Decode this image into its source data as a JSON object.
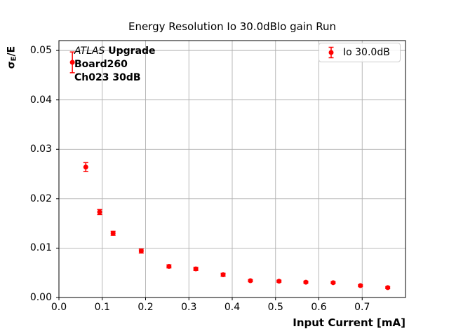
{
  "chart_data": {
    "type": "scatter",
    "title": "Energy Resolution Io 30.0dBlo gain Run",
    "xlabel": "Input Current [mA]",
    "ylabel": "σE/E",
    "ylabel_parts": {
      "sigma": "σ",
      "subscript": "E",
      "rest": "/E"
    },
    "xlim": [
      0,
      0.8
    ],
    "ylim": [
      0,
      0.052
    ],
    "grid": true,
    "grid_color": "#b0b0b0",
    "axis_color": "#000000",
    "xticks": {
      "values": [
        0.0,
        0.1,
        0.2,
        0.3,
        0.4,
        0.5,
        0.6,
        0.7
      ],
      "labels": [
        "0.0",
        "0.1",
        "0.2",
        "0.3",
        "0.4",
        "0.5",
        "0.6",
        "0.7"
      ]
    },
    "yticks": {
      "values": [
        0.0,
        0.01,
        0.02,
        0.03,
        0.04,
        0.05
      ],
      "labels": [
        "0.00",
        "0.01",
        "0.02",
        "0.03",
        "0.04",
        "0.05"
      ]
    },
    "legend": {
      "label": "Io 30.0dB",
      "position": "upper right"
    },
    "series": [
      {
        "name": "Io 30.0dB",
        "color": "#ff0000",
        "marker": "circle-with-errorbar",
        "points": [
          {
            "x": 0.031,
            "y": 0.0476,
            "yerr": 0.0021
          },
          {
            "x": 0.062,
            "y": 0.0264,
            "yerr": 0.0009
          },
          {
            "x": 0.094,
            "y": 0.0173,
            "yerr": 0.0005
          },
          {
            "x": 0.125,
            "y": 0.013,
            "yerr": 0.0004
          },
          {
            "x": 0.19,
            "y": 0.0094,
            "yerr": 0.0004
          },
          {
            "x": 0.254,
            "y": 0.0063,
            "yerr": 0.0003
          },
          {
            "x": 0.316,
            "y": 0.0058,
            "yerr": 0.0003
          },
          {
            "x": 0.379,
            "y": 0.0046,
            "yerr": 0.0003
          },
          {
            "x": 0.442,
            "y": 0.0034,
            "yerr": 0.0002
          },
          {
            "x": 0.508,
            "y": 0.0033,
            "yerr": 0.0002
          },
          {
            "x": 0.57,
            "y": 0.0031,
            "yerr": 0.0002
          },
          {
            "x": 0.633,
            "y": 0.003,
            "yerr": 0.0002
          },
          {
            "x": 0.696,
            "y": 0.0024,
            "yerr": 0.0002
          },
          {
            "x": 0.759,
            "y": 0.002,
            "yerr": 0.0002
          }
        ]
      }
    ]
  },
  "annotation": {
    "experiment": "ATLAS",
    "label": " Upgrade",
    "line2": "Board260",
    "line3": "Ch023 30dB"
  }
}
